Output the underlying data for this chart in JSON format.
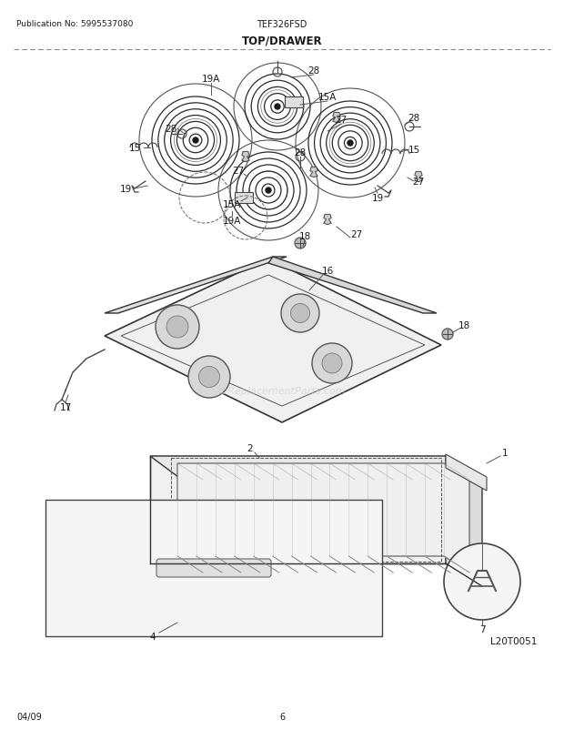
{
  "title": "TOP/DRAWER",
  "pub_no": "Publication No: 5995537080",
  "model": "TEF326FSD",
  "diagram_id": "L20T0051",
  "date": "04/09",
  "page": "6",
  "bg_color": "#ffffff",
  "text_color": "#1a1a1a",
  "watermark": "©ReplacementParts.com"
}
